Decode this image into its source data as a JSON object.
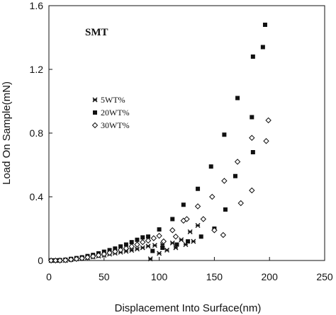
{
  "chart_data": {
    "type": "scatter",
    "title": "SMT",
    "xlabel": "Displacement Into Surface(nm)",
    "ylabel": "Load On Sample(mN)",
    "xlim": [
      0,
      250
    ],
    "ylim": [
      0,
      1.6
    ],
    "xticks": [
      "0",
      "50",
      "100",
      "150",
      "200",
      "250"
    ],
    "yticks": [
      "0",
      "0.4",
      "0.8",
      "1.2",
      "1.6"
    ],
    "grid": false,
    "legend_position": "left",
    "series": [
      {
        "name": "5WT%",
        "marker": "asterisk",
        "points": [
          [
            2,
            0.0
          ],
          [
            6,
            0.0
          ],
          [
            10,
            0.0
          ],
          [
            15,
            0.0
          ],
          [
            20,
            0.005
          ],
          [
            25,
            0.01
          ],
          [
            30,
            0.013
          ],
          [
            35,
            0.017
          ],
          [
            40,
            0.022
          ],
          [
            45,
            0.028
          ],
          [
            50,
            0.033
          ],
          [
            55,
            0.04
          ],
          [
            60,
            0.046
          ],
          [
            65,
            0.052
          ],
          [
            70,
            0.058
          ],
          [
            75,
            0.064
          ],
          [
            80,
            0.072
          ],
          [
            85,
            0.08
          ],
          [
            90,
            0.09
          ],
          [
            92,
            0.01
          ],
          [
            96,
            0.095
          ],
          [
            100,
            0.045
          ],
          [
            103,
            0.1
          ],
          [
            107,
            0.065
          ],
          [
            112,
            0.11
          ],
          [
            115,
            0.08
          ],
          [
            120,
            0.13
          ],
          [
            124,
            0.1
          ],
          [
            128,
            0.18
          ],
          [
            131,
            0.12
          ],
          [
            135,
            0.22
          ]
        ]
      },
      {
        "name": "20WT%",
        "marker": "square",
        "points": [
          [
            2,
            0.0
          ],
          [
            6,
            0.0
          ],
          [
            10,
            0.002
          ],
          [
            15,
            0.005
          ],
          [
            20,
            0.01
          ],
          [
            25,
            0.015
          ],
          [
            30,
            0.02
          ],
          [
            35,
            0.028
          ],
          [
            40,
            0.035
          ],
          [
            45,
            0.045
          ],
          [
            50,
            0.055
          ],
          [
            55,
            0.065
          ],
          [
            60,
            0.075
          ],
          [
            65,
            0.088
          ],
          [
            70,
            0.1
          ],
          [
            75,
            0.115
          ],
          [
            80,
            0.13
          ],
          [
            85,
            0.145
          ],
          [
            90,
            0.15
          ],
          [
            94,
            0.06
          ],
          [
            100,
            0.195
          ],
          [
            103,
            0.08
          ],
          [
            112,
            0.26
          ],
          [
            116,
            0.1
          ],
          [
            122,
            0.35
          ],
          [
            126,
            0.12
          ],
          [
            135,
            0.45
          ],
          [
            138,
            0.15
          ],
          [
            147,
            0.59
          ],
          [
            150,
            0.2
          ],
          [
            159,
            0.79
          ],
          [
            160,
            0.32
          ],
          [
            171,
            1.02
          ],
          [
            169,
            0.53
          ],
          [
            184,
            0.9
          ],
          [
            185,
            1.28
          ],
          [
            194,
            1.34
          ],
          [
            196,
            1.48
          ],
          [
            185,
            0.68
          ]
        ]
      },
      {
        "name": "30WT%",
        "marker": "diamond",
        "points": [
          [
            2,
            0.0
          ],
          [
            6,
            0.0
          ],
          [
            10,
            0.0
          ],
          [
            15,
            0.002
          ],
          [
            20,
            0.006
          ],
          [
            25,
            0.01
          ],
          [
            30,
            0.014
          ],
          [
            35,
            0.02
          ],
          [
            40,
            0.026
          ],
          [
            45,
            0.033
          ],
          [
            50,
            0.04
          ],
          [
            55,
            0.048
          ],
          [
            60,
            0.056
          ],
          [
            65,
            0.066
          ],
          [
            70,
            0.076
          ],
          [
            75,
            0.088
          ],
          [
            80,
            0.1
          ],
          [
            85,
            0.115
          ],
          [
            90,
            0.125
          ],
          [
            95,
            0.14
          ],
          [
            100,
            0.155
          ],
          [
            104,
            0.12
          ],
          [
            112,
            0.19
          ],
          [
            115,
            0.15
          ],
          [
            122,
            0.25
          ],
          [
            125,
            0.26
          ],
          [
            135,
            0.34
          ],
          [
            140,
            0.26
          ],
          [
            148,
            0.4
          ],
          [
            150,
            0.19
          ],
          [
            159,
            0.5
          ],
          [
            158,
            0.16
          ],
          [
            171,
            0.62
          ],
          [
            174,
            0.36
          ],
          [
            184,
            0.77
          ],
          [
            184,
            0.44
          ],
          [
            197,
            0.75
          ],
          [
            199,
            0.88
          ]
        ]
      }
    ]
  }
}
